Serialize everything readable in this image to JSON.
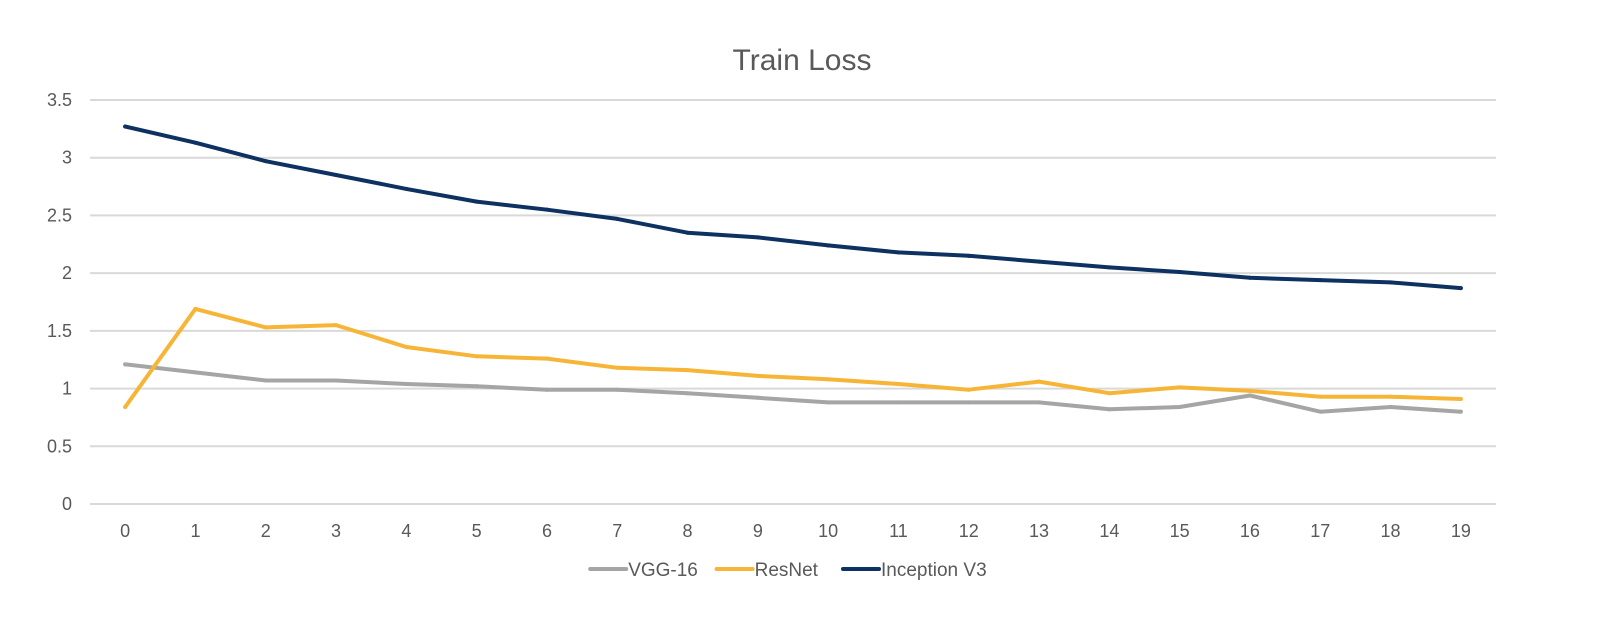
{
  "chart_data": {
    "type": "line",
    "title": "Train Loss",
    "xlabel": "",
    "ylabel": "",
    "x": [
      0,
      1,
      2,
      3,
      4,
      5,
      6,
      7,
      8,
      9,
      10,
      11,
      12,
      13,
      14,
      15,
      16,
      17,
      18,
      19
    ],
    "ylim": [
      0,
      3.5
    ],
    "yticks": [
      0,
      0.5,
      1,
      1.5,
      2,
      2.5,
      3,
      3.5
    ],
    "grid": true,
    "legend_position": "bottom",
    "series": [
      {
        "name": "VGG-16",
        "color": "#a5a5a5",
        "values": [
          1.21,
          1.14,
          1.07,
          1.07,
          1.04,
          1.02,
          0.99,
          0.99,
          0.96,
          0.92,
          0.88,
          0.88,
          0.88,
          0.88,
          0.82,
          0.84,
          0.94,
          0.8,
          0.84,
          0.8
        ]
      },
      {
        "name": "ResNet",
        "color": "#f7b538",
        "values": [
          0.84,
          1.69,
          1.53,
          1.55,
          1.36,
          1.28,
          1.26,
          1.18,
          1.16,
          1.11,
          1.08,
          1.04,
          0.99,
          1.06,
          0.96,
          1.01,
          0.98,
          0.93,
          0.93,
          0.91
        ]
      },
      {
        "name": "Inception V3",
        "color": "#0d3160",
        "values": [
          3.27,
          3.13,
          2.97,
          2.85,
          2.73,
          2.62,
          2.55,
          2.47,
          2.35,
          2.31,
          2.24,
          2.18,
          2.15,
          2.1,
          2.05,
          2.01,
          1.96,
          1.94,
          1.92,
          1.87
        ]
      }
    ]
  }
}
